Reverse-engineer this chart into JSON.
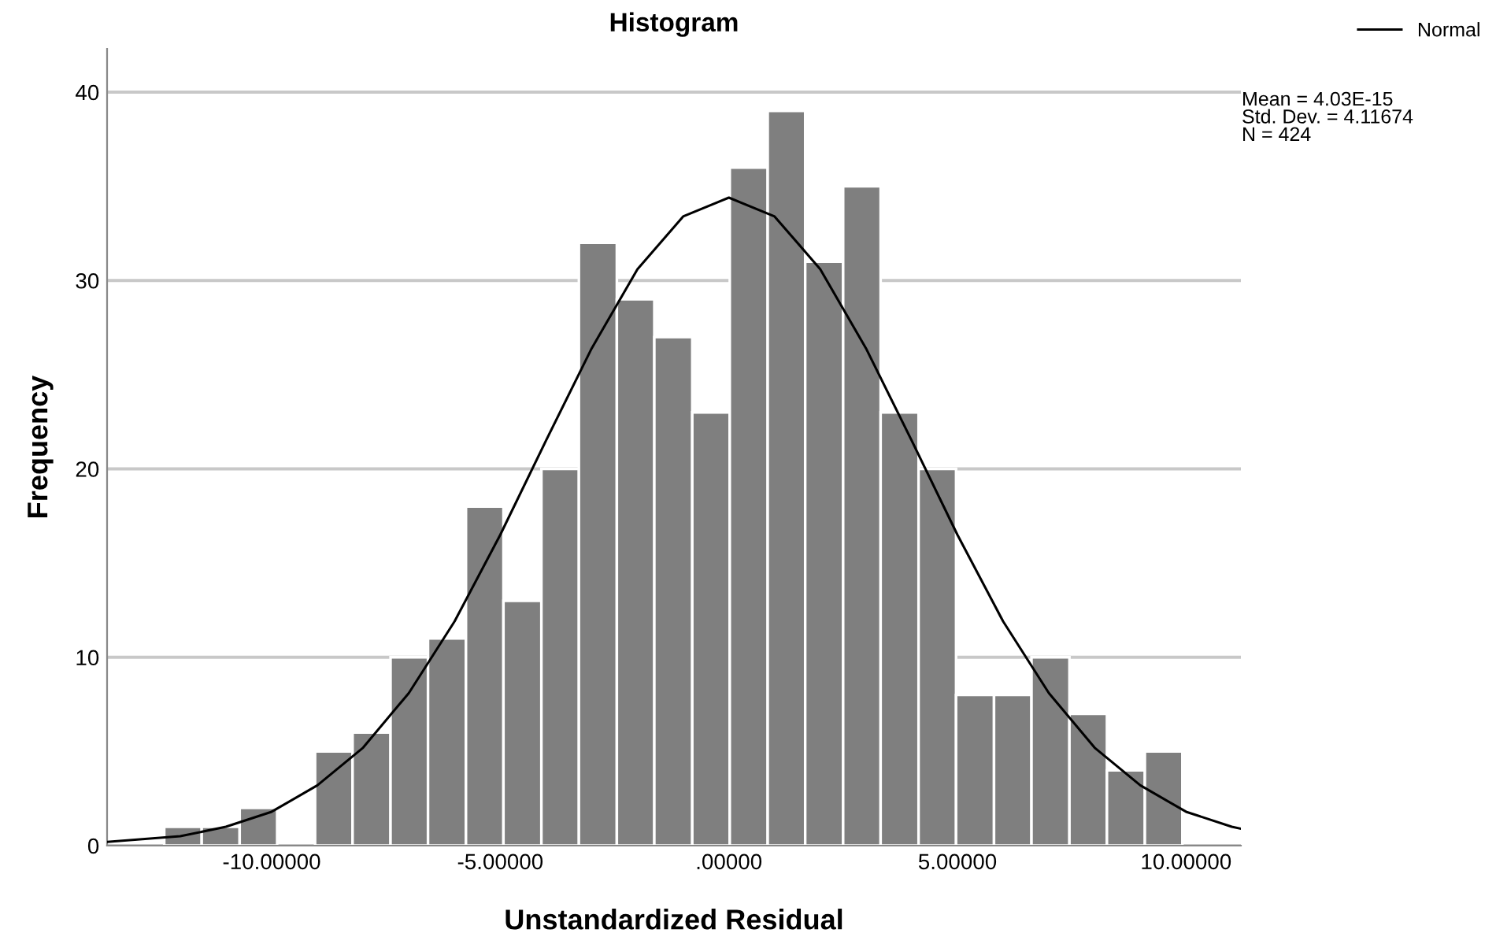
{
  "chart_data": {
    "type": "histogram",
    "title": "Histogram",
    "xlabel": "Unstandardized Residual",
    "ylabel": "Frequency",
    "bins": [
      -12.35,
      -11.53,
      -10.7,
      -9.88,
      -9.05,
      -8.23,
      -7.4,
      -6.58,
      -5.75,
      -4.93,
      -4.1,
      -3.28,
      -2.45,
      -1.63,
      -0.8,
      0.02,
      0.85,
      1.67,
      2.5,
      3.32,
      4.15,
      4.97,
      5.8,
      6.62,
      7.45,
      8.27,
      9.1,
      9.92
    ],
    "values": [
      1,
      1,
      2,
      0,
      5,
      6,
      10,
      11,
      18,
      13,
      20,
      32,
      29,
      27,
      23,
      36,
      39,
      31,
      35,
      23,
      20,
      8,
      8,
      10,
      7,
      4,
      5
    ],
    "color": "#7f7f7f",
    "series": [
      {
        "name": "Normal",
        "type": "line",
        "color": "#000000",
        "x": [
          -13.6,
          -12,
          -11,
          -10,
          -9,
          -8,
          -7,
          -6,
          -5,
          -4,
          -3,
          -2,
          -1,
          0,
          1,
          2,
          3,
          4,
          5,
          6,
          7,
          8,
          9,
          10,
          11,
          11.2
        ],
        "values": [
          0.2,
          0.5,
          1.0,
          1.8,
          3.2,
          5.2,
          8.1,
          11.9,
          16.5,
          21.5,
          26.4,
          30.6,
          33.4,
          34.4,
          33.4,
          30.6,
          26.4,
          21.5,
          16.5,
          11.9,
          8.1,
          5.2,
          3.2,
          1.8,
          1.0,
          0.9
        ]
      }
    ],
    "xlim": [
      -13.6,
      11.2
    ],
    "xticks": [
      {
        "value": -10,
        "label": "-10.00000"
      },
      {
        "value": -5,
        "label": "-5.00000"
      },
      {
        "value": 0,
        "label": ".00000"
      },
      {
        "value": 5,
        "label": "5.00000"
      },
      {
        "value": 10,
        "label": "10.00000"
      }
    ],
    "ylim": [
      0,
      42.3
    ],
    "yticks": [
      0,
      10,
      20,
      30,
      40
    ],
    "grid": "y",
    "legend": "top right",
    "annotations": [
      "Mean = 4.03E-15\nStd. Dev. = 4.11674\nN = 424"
    ]
  }
}
